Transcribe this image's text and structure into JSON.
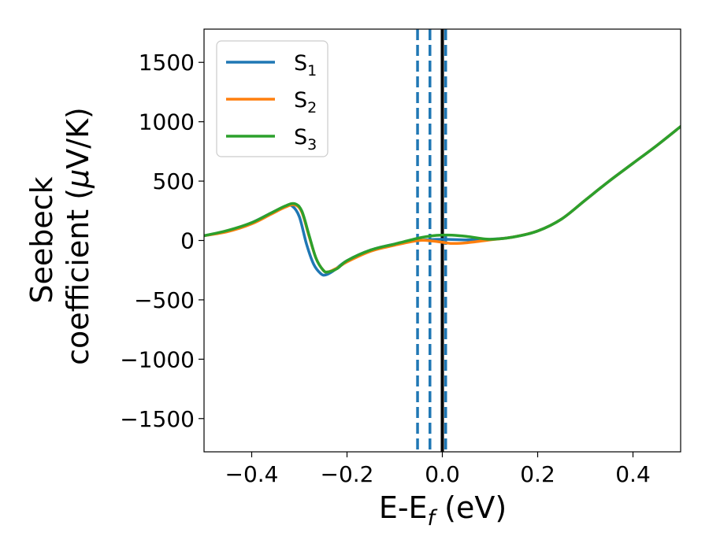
{
  "chart_data": {
    "type": "line",
    "xlabel": {
      "main": "E-E",
      "sub": "f",
      "suffix": " (eV)"
    },
    "ylabel": {
      "line1": "Seebeck",
      "line2_prefix": "coefficient  (",
      "mu": "μ",
      "line2_suffix": "V/K)"
    },
    "xlim": [
      -0.5,
      0.5
    ],
    "ylim": [
      -1780,
      1780
    ],
    "xticks": [
      -0.4,
      -0.2,
      0.0,
      0.2,
      0.4
    ],
    "xtick_labels": [
      "−0.4",
      "−0.2",
      "0.0",
      "0.2",
      "0.4"
    ],
    "yticks": [
      1500,
      1000,
      500,
      0,
      -500,
      -1000,
      -1500
    ],
    "ytick_labels": [
      "1500",
      "1000",
      "500",
      "0",
      "−500",
      "−1000",
      "−1500"
    ],
    "grid": false,
    "legend_position": "upper-left",
    "vlines": [
      {
        "x": -0.052,
        "style": "dashed",
        "color": "#1f77b4"
      },
      {
        "x": -0.026,
        "style": "dashed",
        "color": "#1f77b4"
      },
      {
        "x": 0.007,
        "style": "dashed",
        "color": "#1f77b4"
      },
      {
        "x": 0.0,
        "style": "solid",
        "color": "#000000"
      }
    ],
    "series": [
      {
        "name": "S",
        "sub": "1",
        "color": "#1f77b4",
        "x": [
          -0.5,
          -0.45,
          -0.4,
          -0.36,
          -0.33,
          -0.315,
          -0.3,
          -0.285,
          -0.27,
          -0.255,
          -0.245,
          -0.23,
          -0.2,
          -0.15,
          -0.1,
          -0.05,
          0.0,
          0.05,
          0.1,
          0.15,
          0.2,
          0.25,
          0.3,
          0.35,
          0.4,
          0.45,
          0.5
        ],
        "y": [
          40,
          80,
          150,
          230,
          285,
          290,
          200,
          -30,
          -200,
          -280,
          -290,
          -260,
          -170,
          -80,
          -30,
          0,
          10,
          5,
          10,
          30,
          80,
          180,
          340,
          500,
          650,
          800,
          960
        ]
      },
      {
        "name": "S",
        "sub": "2",
        "color": "#ff7f0e",
        "x": [
          -0.5,
          -0.45,
          -0.4,
          -0.36,
          -0.33,
          -0.31,
          -0.295,
          -0.28,
          -0.265,
          -0.25,
          -0.24,
          -0.22,
          -0.2,
          -0.15,
          -0.1,
          -0.05,
          -0.02,
          0.0,
          0.02,
          0.05,
          0.1,
          0.15,
          0.2,
          0.25,
          0.3,
          0.35,
          0.4,
          0.45,
          0.5
        ],
        "y": [
          40,
          75,
          140,
          220,
          280,
          300,
          240,
          40,
          -150,
          -250,
          -265,
          -230,
          -180,
          -90,
          -40,
          0,
          -5,
          -15,
          -25,
          -20,
          5,
          30,
          80,
          180,
          340,
          500,
          650,
          800,
          960
        ]
      },
      {
        "name": "S",
        "sub": "3",
        "color": "#2ca02c",
        "x": [
          -0.5,
          -0.45,
          -0.4,
          -0.36,
          -0.33,
          -0.31,
          -0.295,
          -0.28,
          -0.265,
          -0.25,
          -0.24,
          -0.22,
          -0.2,
          -0.15,
          -0.1,
          -0.05,
          -0.02,
          0.0,
          0.02,
          0.05,
          0.1,
          0.15,
          0.2,
          0.25,
          0.3,
          0.35,
          0.4,
          0.45,
          0.5
        ],
        "y": [
          40,
          85,
          150,
          230,
          290,
          310,
          250,
          50,
          -150,
          -250,
          -265,
          -235,
          -170,
          -80,
          -30,
          20,
          40,
          45,
          45,
          35,
          10,
          30,
          80,
          180,
          340,
          500,
          650,
          800,
          960
        ]
      }
    ]
  }
}
